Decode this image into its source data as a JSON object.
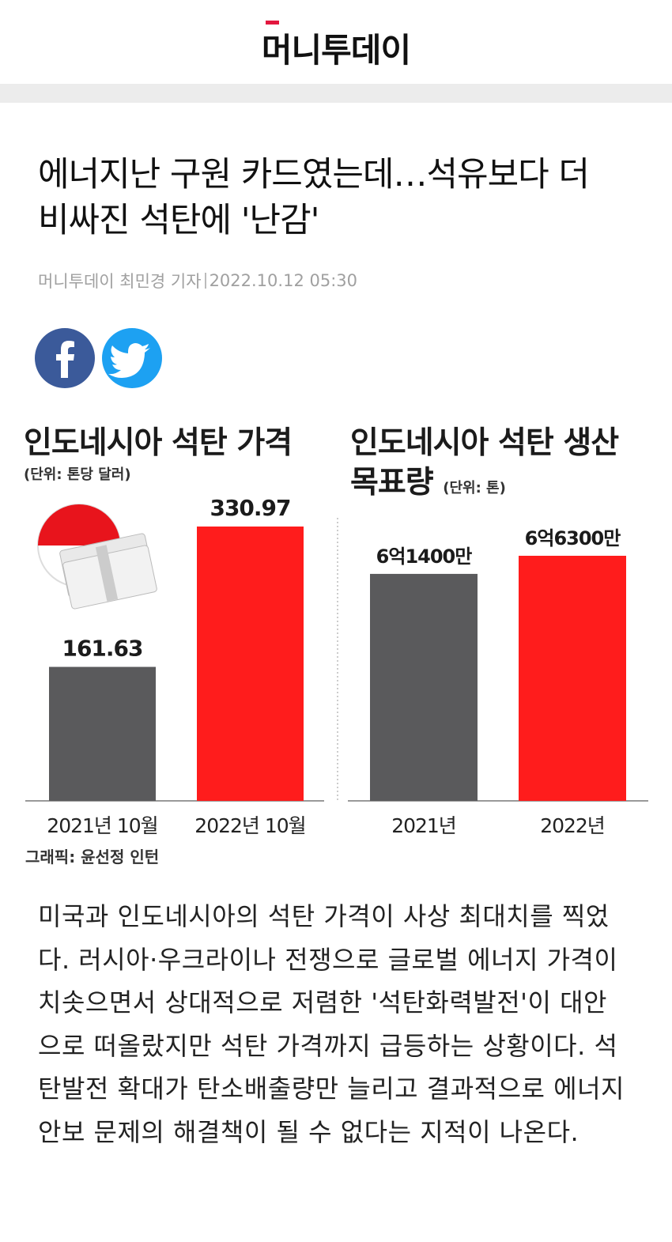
{
  "header": {
    "logo": "머니투데이"
  },
  "article": {
    "title": "에너지난 구원 카드였는데…석유보다 더 비싸진 석탄에 '난감'",
    "author": "머니투데이 최민경 기자",
    "date": "2022.10.12 05:30",
    "body": "미국과 인도네시아의 석탄 가격이 사상 최대치를 찍었다. 러시아·우크라이나 전쟁으로 글로벌 에너지 가격이 치솟으면서 상대적으로 저렴한 '석탄화력발전'이 대안으로 떠올랐지만 석탄 가격까지 급등하는 상황이다. 석탄발전 확대가 탄소배출량만 늘리고 결과적으로 에너지 안보 문제의 해결책이 될 수 없다는 지적이 나온다."
  },
  "chart_data": [
    {
      "type": "bar",
      "title": "인도네시아 석탄 가격",
      "unit": "(단위: 톤당 달러)",
      "categories": [
        "2021년 10월",
        "2022년 10월"
      ],
      "values": [
        161.63,
        330.97
      ],
      "colors": [
        "#5a5a5c",
        "#ff1c1c"
      ]
    },
    {
      "type": "bar",
      "title": "인도네시아 석탄 생산 목표량",
      "unit": "(단위: 톤)",
      "categories": [
        "2021년",
        "2022년"
      ],
      "values": [
        614000000,
        663000000
      ],
      "value_labels": [
        "6억1400만",
        "6억6300만"
      ],
      "colors": [
        "#5a5a5c",
        "#ff1c1c"
      ]
    }
  ],
  "credit": "그래픽: 윤선정 인턴"
}
